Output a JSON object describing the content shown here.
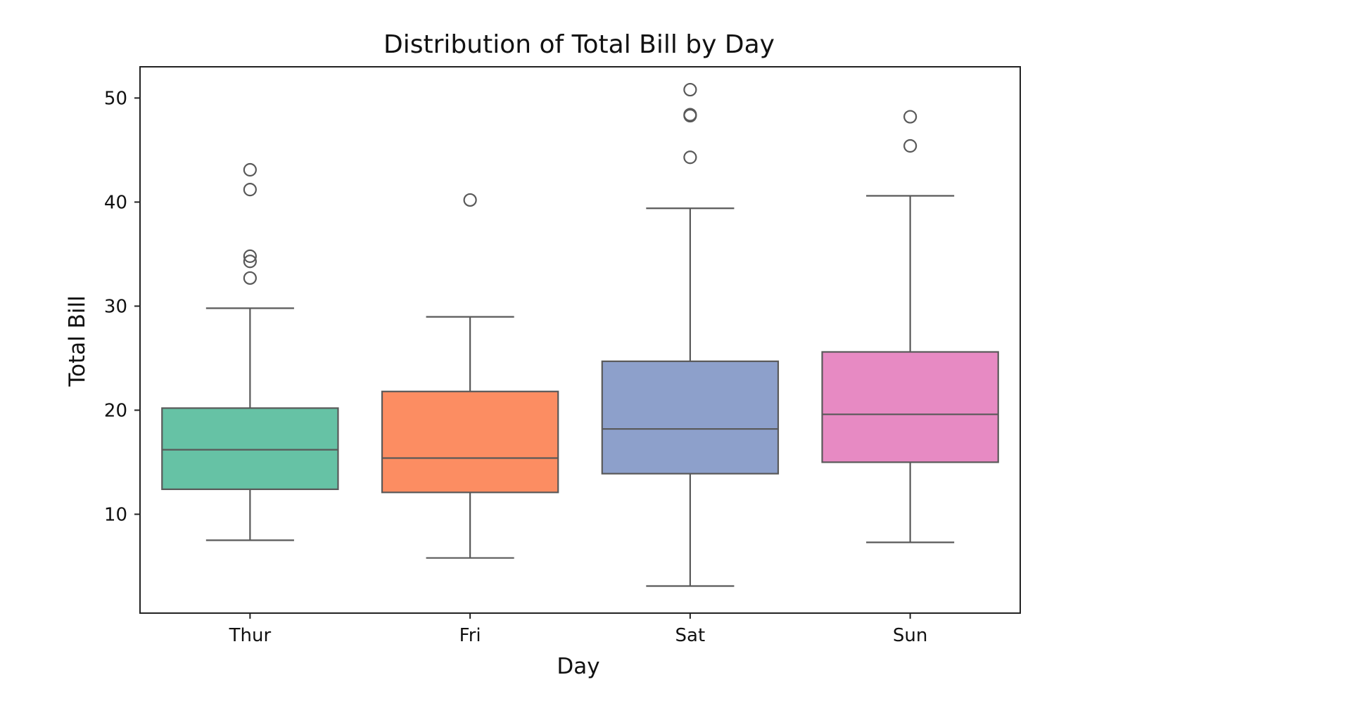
{
  "chart_data": {
    "type": "box",
    "title": "Distribution of Total Bill by Day",
    "xlabel": "Day",
    "ylabel": "Total Bill",
    "ylim": [
      0.5,
      53
    ],
    "yticks": [
      10,
      20,
      30,
      40,
      50
    ],
    "grid": false,
    "categories": [
      "Thur",
      "Fri",
      "Sat",
      "Sun"
    ],
    "colors": [
      "#66c2a5",
      "#fc8d62",
      "#8da0cb",
      "#e78ac3"
    ],
    "boxes": [
      {
        "category": "Thur",
        "whisker_low": 7.5,
        "q1": 12.4,
        "median": 16.2,
        "q3": 20.2,
        "whisker_high": 29.8,
        "outliers": [
          32.7,
          34.3,
          34.8,
          41.2,
          43.1
        ]
      },
      {
        "category": "Fri",
        "whisker_low": 5.8,
        "q1": 12.1,
        "median": 15.4,
        "q3": 21.8,
        "whisker_high": 28.97,
        "outliers": [
          40.2
        ]
      },
      {
        "category": "Sat",
        "whisker_low": 3.1,
        "q1": 13.9,
        "median": 18.2,
        "q3": 24.7,
        "whisker_high": 39.4,
        "outliers": [
          44.3,
          48.3,
          48.4,
          50.8
        ]
      },
      {
        "category": "Sun",
        "whisker_low": 7.3,
        "q1": 15.0,
        "median": 19.6,
        "q3": 25.6,
        "whisker_high": 40.6,
        "outliers": [
          45.4,
          48.2
        ]
      }
    ]
  }
}
